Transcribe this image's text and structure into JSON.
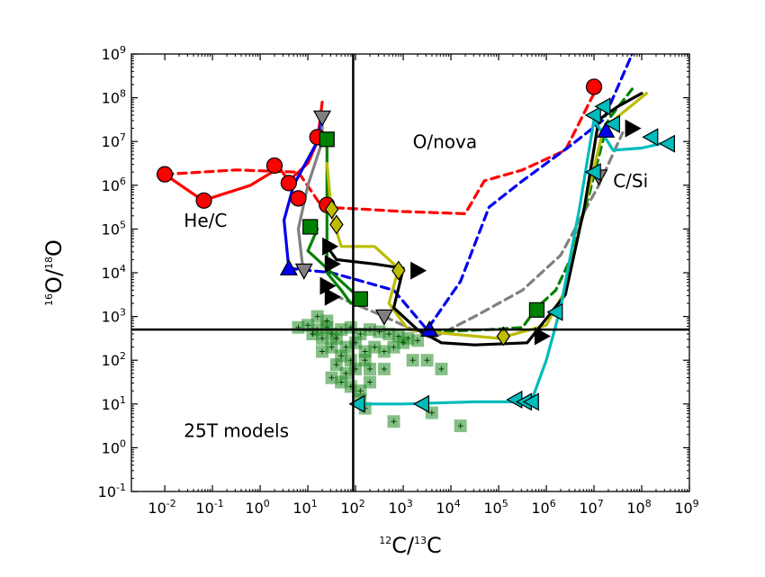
{
  "chart_data": {
    "type": "scatter",
    "title": "",
    "xlabel": {
      "pre": "12",
      "main": "C/",
      "sup2": "13",
      "end": "C"
    },
    "ylabel": {
      "pre": "16",
      "main": "O/",
      "sup2": "18",
      "end": "O"
    },
    "xscale": "log",
    "yscale": "log",
    "xlim": [
      -2.7,
      9
    ],
    "ylim": [
      -1,
      9
    ],
    "x_tick_exponents": [
      -2,
      -1,
      0,
      1,
      2,
      3,
      4,
      5,
      6,
      7,
      8,
      9
    ],
    "y_tick_exponents": [
      -1,
      0,
      1,
      2,
      3,
      4,
      5,
      6,
      7,
      8,
      9
    ],
    "tick_base": "10",
    "reference_lines": {
      "x_log": 1.95,
      "y_log": 2.7
    },
    "annotations": [
      {
        "id": "he-c",
        "text": "He/C",
        "x_log": -1.6,
        "y_log": 5.05
      },
      {
        "id": "o-nova",
        "text": "O/nova",
        "x_log": 3.2,
        "y_log": 6.85
      },
      {
        "id": "c-si",
        "text": "C/Si",
        "x_log": 7.4,
        "y_log": 5.95
      },
      {
        "id": "models",
        "text": "25T models",
        "x_log": -1.6,
        "y_log": 0.25
      }
    ],
    "series": [
      {
        "name": "red-solid",
        "color": "#ff0000",
        "dash": false,
        "marker": "circle",
        "points": [
          [
            -2,
            6.25
          ],
          [
            -1.2,
            5.65
          ],
          [
            -0.2,
            6.0
          ],
          [
            0.4,
            6.4
          ],
          [
            0.6,
            6.1
          ],
          [
            1.0,
            6.5
          ],
          [
            1.2,
            7.0
          ],
          [
            1.3,
            7.9
          ]
        ],
        "marker_points": [
          [
            -2,
            6.25
          ],
          [
            -1.18,
            5.65
          ],
          [
            0.3,
            6.45
          ],
          [
            0.6,
            6.05
          ],
          [
            0.8,
            5.7
          ],
          [
            1.2,
            7.1
          ]
        ]
      },
      {
        "name": "red-dashed",
        "color": "#ff0000",
        "dash": true,
        "marker": "circle",
        "points": [
          [
            -2,
            6.25
          ],
          [
            -0.5,
            6.35
          ],
          [
            0.8,
            6.3
          ],
          [
            1.3,
            5.5
          ],
          [
            2.2,
            5.45
          ],
          [
            3.0,
            5.4
          ],
          [
            4.3,
            5.35
          ],
          [
            4.7,
            6.1
          ],
          [
            5.5,
            6.35
          ],
          [
            6.4,
            6.8
          ],
          [
            7.0,
            8.1
          ]
        ],
        "marker_points": [
          [
            1.4,
            5.55
          ],
          [
            7.0,
            8.25
          ]
        ]
      },
      {
        "name": "blue-solid",
        "color": "#0000ee",
        "dash": false,
        "marker": "triangle-up",
        "points": [
          [
            0.6,
            4.1
          ],
          [
            0.5,
            5.2
          ],
          [
            0.7,
            6.0
          ],
          [
            1.2,
            7.0
          ],
          [
            1.3,
            7.6
          ]
        ],
        "marker_points": [
          [
            0.6,
            4.1
          ]
        ]
      },
      {
        "name": "blue-dashed",
        "color": "#0000ee",
        "dash": true,
        "marker": "triangle-up",
        "points": [
          [
            0.6,
            4.1
          ],
          [
            1.5,
            4.0
          ],
          [
            2.8,
            3.6
          ],
          [
            3.5,
            2.7
          ],
          [
            4.2,
            3.8
          ],
          [
            4.8,
            5.5
          ],
          [
            5.5,
            6.1
          ],
          [
            6.5,
            6.9
          ],
          [
            7.2,
            7.5
          ],
          [
            7.8,
            9.0
          ]
        ],
        "marker_points": [
          [
            3.55,
            2.7
          ],
          [
            7.25,
            7.25
          ]
        ]
      },
      {
        "name": "gray-solid",
        "color": "#808080",
        "dash": false,
        "marker": "triangle-down",
        "points": [
          [
            0.9,
            4.05
          ],
          [
            0.8,
            5.0
          ],
          [
            1.0,
            6.0
          ],
          [
            1.3,
            7.0
          ],
          [
            1.3,
            7.6
          ]
        ],
        "marker_points": [
          [
            0.92,
            4.05
          ],
          [
            1.3,
            7.55
          ]
        ]
      },
      {
        "name": "gray-dashed",
        "color": "#808080",
        "dash": true,
        "marker": "triangle-down",
        "points": [
          [
            1.3,
            3.6
          ],
          [
            2.6,
            3.0
          ],
          [
            3.6,
            2.5
          ],
          [
            4.5,
            3.0
          ],
          [
            5.5,
            3.6
          ],
          [
            6.3,
            4.4
          ],
          [
            7.1,
            6.0
          ],
          [
            7.6,
            7.2
          ]
        ],
        "marker_points": [
          [
            2.6,
            3.0
          ],
          [
            7.1,
            6.2
          ]
        ]
      },
      {
        "name": "green-solid",
        "color": "#008000",
        "dash": false,
        "marker": "square",
        "points": [
          [
            1.2,
            5.0
          ],
          [
            1.0,
            4.5
          ],
          [
            1.5,
            4.0
          ],
          [
            2.1,
            3.4
          ],
          [
            1.9,
            3.3
          ],
          [
            1.7,
            3.6
          ],
          [
            1.4,
            4.0
          ],
          [
            1.4,
            5.2
          ],
          [
            1.4,
            6.0
          ],
          [
            1.4,
            7.1
          ]
        ],
        "marker_points": [
          [
            1.05,
            5.05
          ],
          [
            2.1,
            3.4
          ],
          [
            1.4,
            7.05
          ]
        ]
      },
      {
        "name": "green-dashed",
        "color": "#008000",
        "dash": true,
        "marker": "square",
        "points": [
          [
            3.6,
            2.65
          ],
          [
            4.8,
            2.7
          ],
          [
            5.5,
            2.75
          ],
          [
            5.8,
            3.2
          ],
          [
            6.2,
            3.6
          ],
          [
            6.5,
            4.3
          ],
          [
            6.9,
            5.8
          ],
          [
            7.3,
            7.5
          ],
          [
            7.8,
            8.2
          ]
        ],
        "marker_points": [
          [
            5.8,
            3.15
          ]
        ]
      },
      {
        "name": "yellow-solid",
        "color": "#bcbc00",
        "dash": false,
        "marker": "diamond",
        "points": [
          [
            1.4,
            6.5
          ],
          [
            1.5,
            5.3
          ],
          [
            1.7,
            4.6
          ],
          [
            2.4,
            4.6
          ],
          [
            2.9,
            4.1
          ],
          [
            2.7,
            3.3
          ],
          [
            3.1,
            2.7
          ],
          [
            4.0,
            2.6
          ],
          [
            5.0,
            2.5
          ],
          [
            6.0,
            2.8
          ],
          [
            6.4,
            3.6
          ],
          [
            6.8,
            5.5
          ],
          [
            7.2,
            7.3
          ],
          [
            8.1,
            8.1
          ]
        ],
        "marker_points": [
          [
            1.5,
            5.45
          ],
          [
            1.6,
            5.1
          ],
          [
            2.9,
            4.05
          ],
          [
            5.1,
            2.55
          ]
        ]
      },
      {
        "name": "black-solid",
        "color": "#000000",
        "dash": false,
        "marker": "triangle-right",
        "points": [
          [
            1.4,
            4.6
          ],
          [
            1.6,
            4.3
          ],
          [
            2.4,
            4.2
          ],
          [
            3.0,
            4.1
          ],
          [
            2.8,
            3.2
          ],
          [
            3.3,
            2.7
          ],
          [
            3.8,
            2.4
          ],
          [
            4.5,
            2.35
          ],
          [
            5.6,
            2.4
          ],
          [
            6.4,
            3.5
          ],
          [
            6.8,
            5.5
          ],
          [
            7.1,
            7.5
          ],
          [
            7.5,
            7.8
          ],
          [
            8.0,
            8.1
          ]
        ],
        "marker_points": [
          [
            1.45,
            4.6
          ],
          [
            1.5,
            4.2
          ],
          [
            1.4,
            3.7
          ],
          [
            1.5,
            3.45
          ],
          [
            3.3,
            4.05
          ],
          [
            5.9,
            2.55
          ],
          [
            7.8,
            7.3
          ]
        ]
      },
      {
        "name": "cyan-solid",
        "color": "#00bbbb",
        "dash": false,
        "marker": "triangle-left",
        "points": [
          [
            2.0,
            1.0
          ],
          [
            3.0,
            1.0
          ],
          [
            4.5,
            1.05
          ],
          [
            5.5,
            1.05
          ],
          [
            5.7,
            1.1
          ],
          [
            6.0,
            2.0
          ],
          [
            6.3,
            3.2
          ],
          [
            6.7,
            5.5
          ],
          [
            7.0,
            7.5
          ],
          [
            7.4,
            6.8
          ],
          [
            8.0,
            6.85
          ],
          [
            8.6,
            7.0
          ]
        ],
        "marker_points": [
          [
            2.05,
            1.0
          ],
          [
            3.4,
            1.0
          ],
          [
            5.35,
            1.1
          ],
          [
            5.55,
            1.05
          ],
          [
            5.7,
            1.05
          ],
          [
            6.2,
            3.1
          ],
          [
            7.0,
            6.3
          ],
          [
            7.0,
            7.6
          ],
          [
            7.2,
            7.8
          ],
          [
            7.4,
            7.4
          ],
          [
            8.2,
            7.1
          ],
          [
            8.55,
            6.95
          ]
        ]
      }
    ],
    "scatter_cloud": {
      "name": "25T-model-points",
      "color": "#228b22",
      "marker": "square-cross",
      "points": [
        [
          0.8,
          2.75
        ],
        [
          1.0,
          2.8
        ],
        [
          1.2,
          2.7
        ],
        [
          1.4,
          2.75
        ],
        [
          1.5,
          2.6
        ],
        [
          1.7,
          2.7
        ],
        [
          1.9,
          2.75
        ],
        [
          2.1,
          2.6
        ],
        [
          2.3,
          2.7
        ],
        [
          2.5,
          2.65
        ],
        [
          2.7,
          2.6
        ],
        [
          2.9,
          2.55
        ],
        [
          3.1,
          2.5
        ],
        [
          3.3,
          2.45
        ],
        [
          1.6,
          2.5
        ],
        [
          1.8,
          2.3
        ],
        [
          2.0,
          2.4
        ],
        [
          2.2,
          2.2
        ],
        [
          1.3,
          2.5
        ],
        [
          1.5,
          2.3
        ],
        [
          1.7,
          2.1
        ],
        [
          1.9,
          2.0
        ],
        [
          1.6,
          1.9
        ],
        [
          1.8,
          1.7
        ],
        [
          1.5,
          1.6
        ],
        [
          1.7,
          1.5
        ],
        [
          1.9,
          1.4
        ],
        [
          2.1,
          1.3
        ],
        [
          2.3,
          1.5
        ],
        [
          2.0,
          1.8
        ],
        [
          2.2,
          2.0
        ],
        [
          2.4,
          2.3
        ],
        [
          2.6,
          2.2
        ],
        [
          2.8,
          2.3
        ],
        [
          3.0,
          2.4
        ],
        [
          2.3,
          1.8
        ],
        [
          2.6,
          1.8
        ],
        [
          3.2,
          2.0
        ],
        [
          3.5,
          2.0
        ],
        [
          3.8,
          1.8
        ],
        [
          2.1,
          1.1
        ],
        [
          2.2,
          0.9
        ],
        [
          3.6,
          0.8
        ],
        [
          4.2,
          0.5
        ],
        [
          2.8,
          0.6
        ],
        [
          1.3,
          2.2
        ],
        [
          1.1,
          2.6
        ],
        [
          1.4,
          2.9
        ],
        [
          1.2,
          3.0
        ]
      ]
    }
  }
}
